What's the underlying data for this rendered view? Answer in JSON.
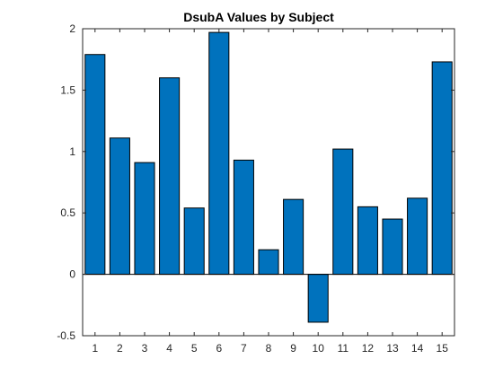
{
  "chart_data": {
    "type": "bar",
    "title": "DsubA Values by Subject",
    "xlabel": "",
    "ylabel": "",
    "categories": [
      "1",
      "2",
      "3",
      "4",
      "5",
      "6",
      "7",
      "8",
      "9",
      "10",
      "11",
      "12",
      "13",
      "14",
      "15"
    ],
    "values": [
      1.79,
      1.11,
      0.91,
      1.6,
      0.54,
      1.97,
      0.93,
      0.2,
      0.61,
      -0.39,
      1.02,
      0.55,
      0.45,
      0.62,
      1.73
    ],
    "ylim": [
      -0.5,
      2
    ],
    "yticks": [
      -0.5,
      0,
      0.5,
      1,
      1.5,
      2
    ],
    "ytick_labels": [
      "-0.5",
      "0",
      "0.5",
      "1",
      "1.5",
      "2"
    ],
    "xlim": [
      0.5,
      15.5
    ],
    "grid": false,
    "bar_color": "#0072BD",
    "bar_edge_color": "#000000"
  }
}
